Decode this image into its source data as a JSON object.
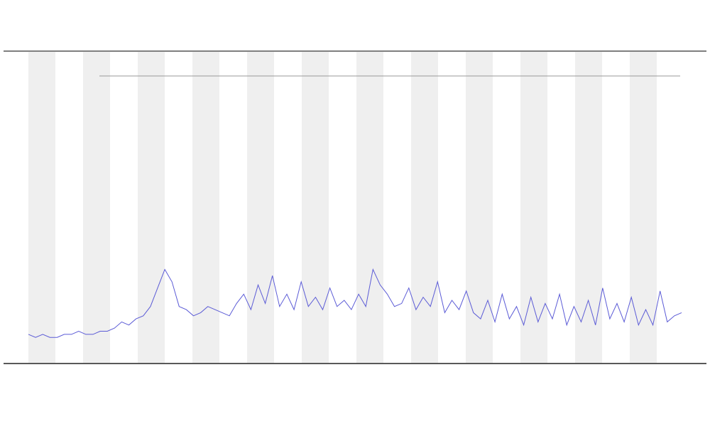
{
  "chart_data": {
    "type": "line",
    "ylim": [
      0,
      100
    ],
    "series": [
      {
        "color": "#5b5bd6",
        "values": [
          9,
          8,
          9,
          8,
          8,
          9,
          9,
          10,
          9,
          9,
          10,
          10,
          11,
          13,
          12,
          14,
          15,
          18,
          24,
          30,
          26,
          18,
          17,
          15,
          16,
          18,
          17,
          16,
          15,
          19,
          22,
          17,
          25,
          19,
          28,
          18,
          22,
          17,
          26,
          18,
          21,
          17,
          24,
          18,
          20,
          17,
          22,
          18,
          30,
          25,
          22,
          18,
          19,
          24,
          17,
          21,
          18,
          26,
          16,
          20,
          17,
          23,
          16,
          14,
          20,
          13,
          22,
          14,
          18,
          12,
          21,
          13,
          19,
          14,
          22,
          12,
          18,
          13,
          20,
          12,
          24,
          14,
          19,
          13,
          21,
          12,
          17,
          12,
          23,
          13,
          15,
          16
        ]
      }
    ]
  }
}
